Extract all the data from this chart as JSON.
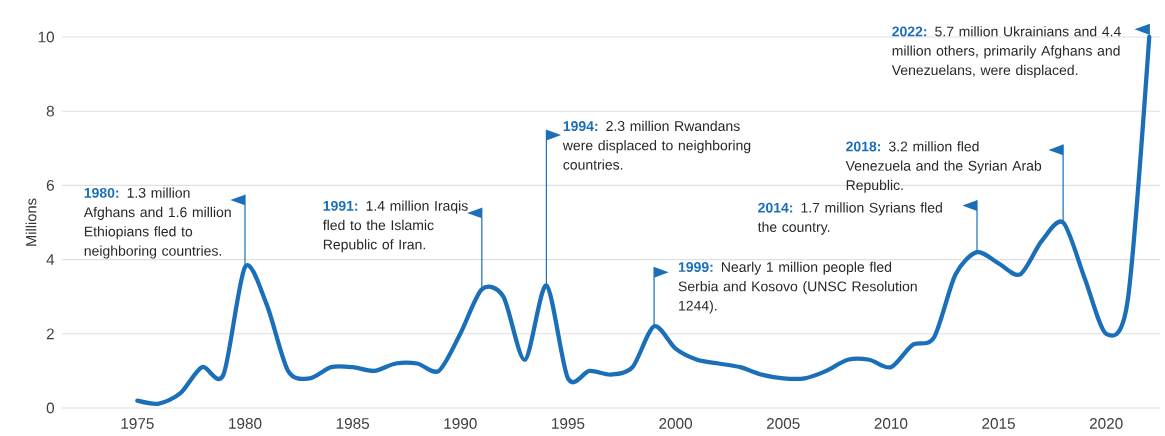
{
  "chart_data": {
    "type": "line",
    "ylabel": "Millions",
    "x": [
      1975,
      1976,
      1977,
      1978,
      1979,
      1980,
      1981,
      1982,
      1983,
      1984,
      1985,
      1986,
      1987,
      1988,
      1989,
      1990,
      1991,
      1992,
      1993,
      1994,
      1995,
      1996,
      1997,
      1998,
      1999,
      2000,
      2001,
      2002,
      2003,
      2004,
      2005,
      2006,
      2007,
      2008,
      2009,
      2010,
      2011,
      2012,
      2013,
      2014,
      2015,
      2016,
      2017,
      2018,
      2019,
      2020,
      2021,
      2022
    ],
    "values": [
      0.2,
      0.12,
      0.4,
      1.1,
      0.9,
      3.8,
      2.8,
      1.0,
      0.8,
      1.1,
      1.1,
      1.0,
      1.2,
      1.2,
      1.0,
      2.0,
      3.2,
      3.0,
      1.3,
      3.3,
      0.8,
      1.0,
      0.9,
      1.1,
      2.2,
      1.6,
      1.3,
      1.2,
      1.1,
      0.9,
      0.8,
      0.8,
      1.0,
      1.3,
      1.3,
      1.1,
      1.7,
      1.9,
      3.6,
      4.2,
      3.9,
      3.6,
      4.5,
      5.0,
      3.5,
      2.0,
      2.9,
      10.0
    ],
    "color": "#1b6fb9",
    "xlim": [
      1971.5,
      2022.5
    ],
    "ylim": [
      0,
      10
    ],
    "xticks": [
      1975,
      1980,
      1985,
      1990,
      1995,
      2000,
      2005,
      2010,
      2015,
      2020
    ],
    "yticks": [
      0,
      2,
      4,
      6,
      8,
      10
    ],
    "grid": "y",
    "marker": "none",
    "line_style": "solid",
    "annotations": [
      {
        "text": "**1980:** 1.3 million Afghans and 1.6 million Ethiopians fled to neighboring countries.",
        "x": 1980,
        "y": 3.8
      },
      {
        "text": "**1991:** 1.4 million Iraqis fled to the Islamic Republic of Iran.",
        "x": 1991,
        "y": 3.2
      },
      {
        "text": "**1994:** 2.3 million Rwandans were displaced to neighboring countries.",
        "x": 1994,
        "y": 3.3
      },
      {
        "text": "**1999:** Nearly 1 million people fled Serbia and Kosovo (UNSC Resolution 1244).",
        "x": 1999,
        "y": 2.2
      },
      {
        "text": "**2014:** 1.7 million Syrians fled the country.",
        "x": 2014,
        "y": 4.2
      },
      {
        "text": "**2018:** 3.2 million fled Venezuela and the Syrian Arab Republic.",
        "x": 2018,
        "y": 5.0
      },
      {
        "text": "**2022:** 5.7 million Ukrainians and 4.4 million others, primarily Afghans and Venezuelans, were displaced.",
        "x": 2022,
        "y": 10.0
      }
    ]
  }
}
